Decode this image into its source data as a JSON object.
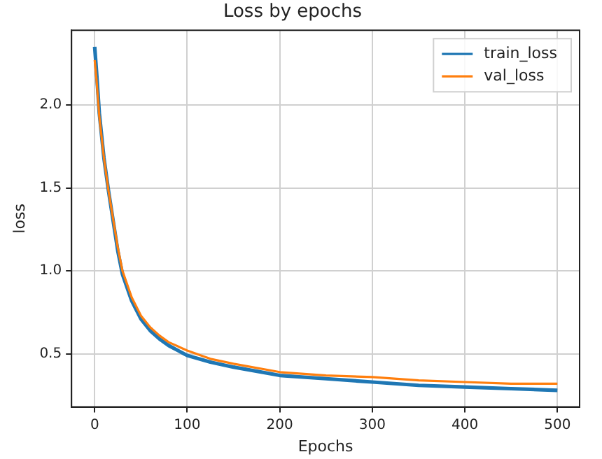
{
  "chart_data": {
    "type": "line",
    "title": "Loss by epochs",
    "xlabel": "Epochs",
    "ylabel": "loss",
    "xlim": [
      -25,
      524
    ],
    "ylim": [
      0.18,
      2.45
    ],
    "xticks": [
      0,
      100,
      200,
      300,
      400,
      500
    ],
    "yticks": [
      0.5,
      {
        "value": 1,
        "label": "1.0"
      },
      1.5,
      {
        "value": 2,
        "label": "2.0"
      }
    ],
    "grid": true,
    "legend": "top right",
    "marker": "none",
    "line_style": "solid",
    "series": [
      {
        "name": "train_loss",
        "color": "#1f77b4",
        "x": [
          0,
          2,
          5,
          10,
          15,
          20,
          25,
          30,
          40,
          50,
          60,
          70,
          80,
          100,
          125,
          150,
          200,
          250,
          300,
          350,
          400,
          450,
          500
        ],
        "values": [
          2.35,
          2.2,
          1.95,
          1.68,
          1.48,
          1.3,
          1.12,
          0.98,
          0.82,
          0.71,
          0.64,
          0.59,
          0.55,
          0.49,
          0.45,
          0.42,
          0.37,
          0.35,
          0.33,
          0.31,
          0.3,
          0.29,
          0.28
        ]
      },
      {
        "name": "val_loss",
        "color": "#ff7f0e",
        "x": [
          0,
          2,
          5,
          10,
          15,
          20,
          25,
          30,
          40,
          50,
          60,
          70,
          80,
          100,
          125,
          150,
          200,
          250,
          300,
          350,
          400,
          450,
          500
        ],
        "values": [
          2.27,
          2.15,
          1.93,
          1.68,
          1.48,
          1.31,
          1.14,
          1.0,
          0.84,
          0.73,
          0.66,
          0.61,
          0.57,
          0.52,
          0.47,
          0.44,
          0.39,
          0.37,
          0.36,
          0.34,
          0.33,
          0.32,
          0.32
        ]
      }
    ]
  }
}
